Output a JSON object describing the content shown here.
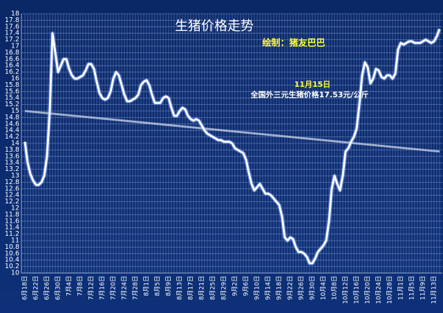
{
  "chart_data": {
    "type": "line",
    "title": "生猪价格走势",
    "subtitle": "绘制：猪友巴巴",
    "annotations": [
      "11月15日",
      "全国外三元生猪价格17.53元/公斤"
    ],
    "categories": [
      "6月18日",
      null,
      null,
      null,
      "6月22日",
      null,
      null,
      null,
      "6月26日",
      null,
      null,
      null,
      "6月30日",
      null,
      null,
      null,
      "7月4日",
      null,
      null,
      null,
      "7月8日",
      null,
      null,
      null,
      "7月12日",
      null,
      null,
      null,
      "7月16日",
      null,
      null,
      null,
      "7月20日",
      null,
      null,
      null,
      "7月24日",
      null,
      null,
      null,
      "7月28日",
      null,
      null,
      null,
      "8月1日",
      null,
      null,
      null,
      "8月5日",
      null,
      null,
      null,
      "8月9日",
      null,
      null,
      null,
      "8月13日",
      null,
      null,
      null,
      "8月17日",
      null,
      null,
      null,
      "8月21日",
      null,
      null,
      null,
      "8月25日",
      null,
      null,
      null,
      "8月29日",
      null,
      null,
      null,
      "9月2日",
      null,
      null,
      null,
      "9月6日",
      null,
      null,
      null,
      "9月10日",
      null,
      null,
      null,
      "9月14日",
      null,
      null,
      null,
      "9月18日",
      null,
      null,
      null,
      "9月22日",
      null,
      null,
      null,
      "9月26日",
      null,
      null,
      null,
      "9月30日",
      null,
      null,
      null,
      "10月4日",
      null,
      null,
      null,
      "10月8日",
      null,
      null,
      null,
      "10月12日",
      null,
      null,
      null,
      "10月16日",
      null,
      null,
      null,
      "10月20日",
      null,
      null,
      null,
      "10月24日",
      null,
      null,
      null,
      "10月28日",
      null,
      null,
      null,
      "11月1日",
      null,
      null,
      null,
      "11月5日",
      null,
      null,
      null,
      "11月9日",
      null,
      null,
      null,
      "11月13日",
      null,
      null
    ],
    "values": [
      14.05,
      13.4,
      13.05,
      12.85,
      12.72,
      12.72,
      12.8,
      13.0,
      13.6,
      15.0,
      17.4,
      16.8,
      16.2,
      16.4,
      16.6,
      16.6,
      16.3,
      16.1,
      16.0,
      16.0,
      16.05,
      16.1,
      16.25,
      16.45,
      16.45,
      16.3,
      15.9,
      15.55,
      15.4,
      15.35,
      15.4,
      15.6,
      16.0,
      16.2,
      16.1,
      15.8,
      15.5,
      15.3,
      15.3,
      15.35,
      15.4,
      15.5,
      15.8,
      15.9,
      15.95,
      15.8,
      15.5,
      15.25,
      15.25,
      15.25,
      15.4,
      15.45,
      15.4,
      15.1,
      14.85,
      14.85,
      15.0,
      15.1,
      15.05,
      14.85,
      14.75,
      14.7,
      14.75,
      14.7,
      14.55,
      14.4,
      14.3,
      14.25,
      14.2,
      14.15,
      14.1,
      14.1,
      14.05,
      14.05,
      14.05,
      14.0,
      13.85,
      13.8,
      13.75,
      13.7,
      13.5,
      13.1,
      12.75,
      12.55,
      12.65,
      12.75,
      12.6,
      12.45,
      12.45,
      12.4,
      12.3,
      12.2,
      12.1,
      11.75,
      11.1,
      11.0,
      11.1,
      11.05,
      10.8,
      10.65,
      10.65,
      10.6,
      10.5,
      10.3,
      10.3,
      10.45,
      10.65,
      10.75,
      10.85,
      11.0,
      11.6,
      12.6,
      13.0,
      12.75,
      12.55,
      13.0,
      13.75,
      13.85,
      14.05,
      14.2,
      14.45,
      15.2,
      16.1,
      16.5,
      16.35,
      15.85,
      16.0,
      16.3,
      16.25,
      16.05,
      16.0,
      16.1,
      16.1,
      16.0,
      16.15,
      16.9,
      17.1,
      17.05,
      17.1,
      17.15,
      17.15,
      17.1,
      17.1,
      17.1,
      17.15,
      17.2,
      17.15,
      17.1,
      17.15,
      17.3,
      17.53
    ],
    "color": "#ffffff",
    "trendline": {
      "values": [
        15.0,
        13.75
      ],
      "color": "#b8c4dc"
    },
    "ylim": [
      10,
      18
    ],
    "yticks": [
      10,
      10.2,
      10.4,
      10.6,
      10.8,
      11,
      11.2,
      11.4,
      11.6,
      11.8,
      12,
      12.2,
      12.4,
      12.6,
      12.8,
      13,
      13.2,
      13.4,
      13.6,
      13.8,
      14,
      14.2,
      14.4,
      14.6,
      14.8,
      15,
      15.2,
      15.4,
      15.6,
      15.8,
      16,
      16.2,
      16.4,
      16.6,
      16.8,
      17,
      17.2,
      17.4,
      17.6,
      17.8,
      18
    ],
    "grid": true
  }
}
